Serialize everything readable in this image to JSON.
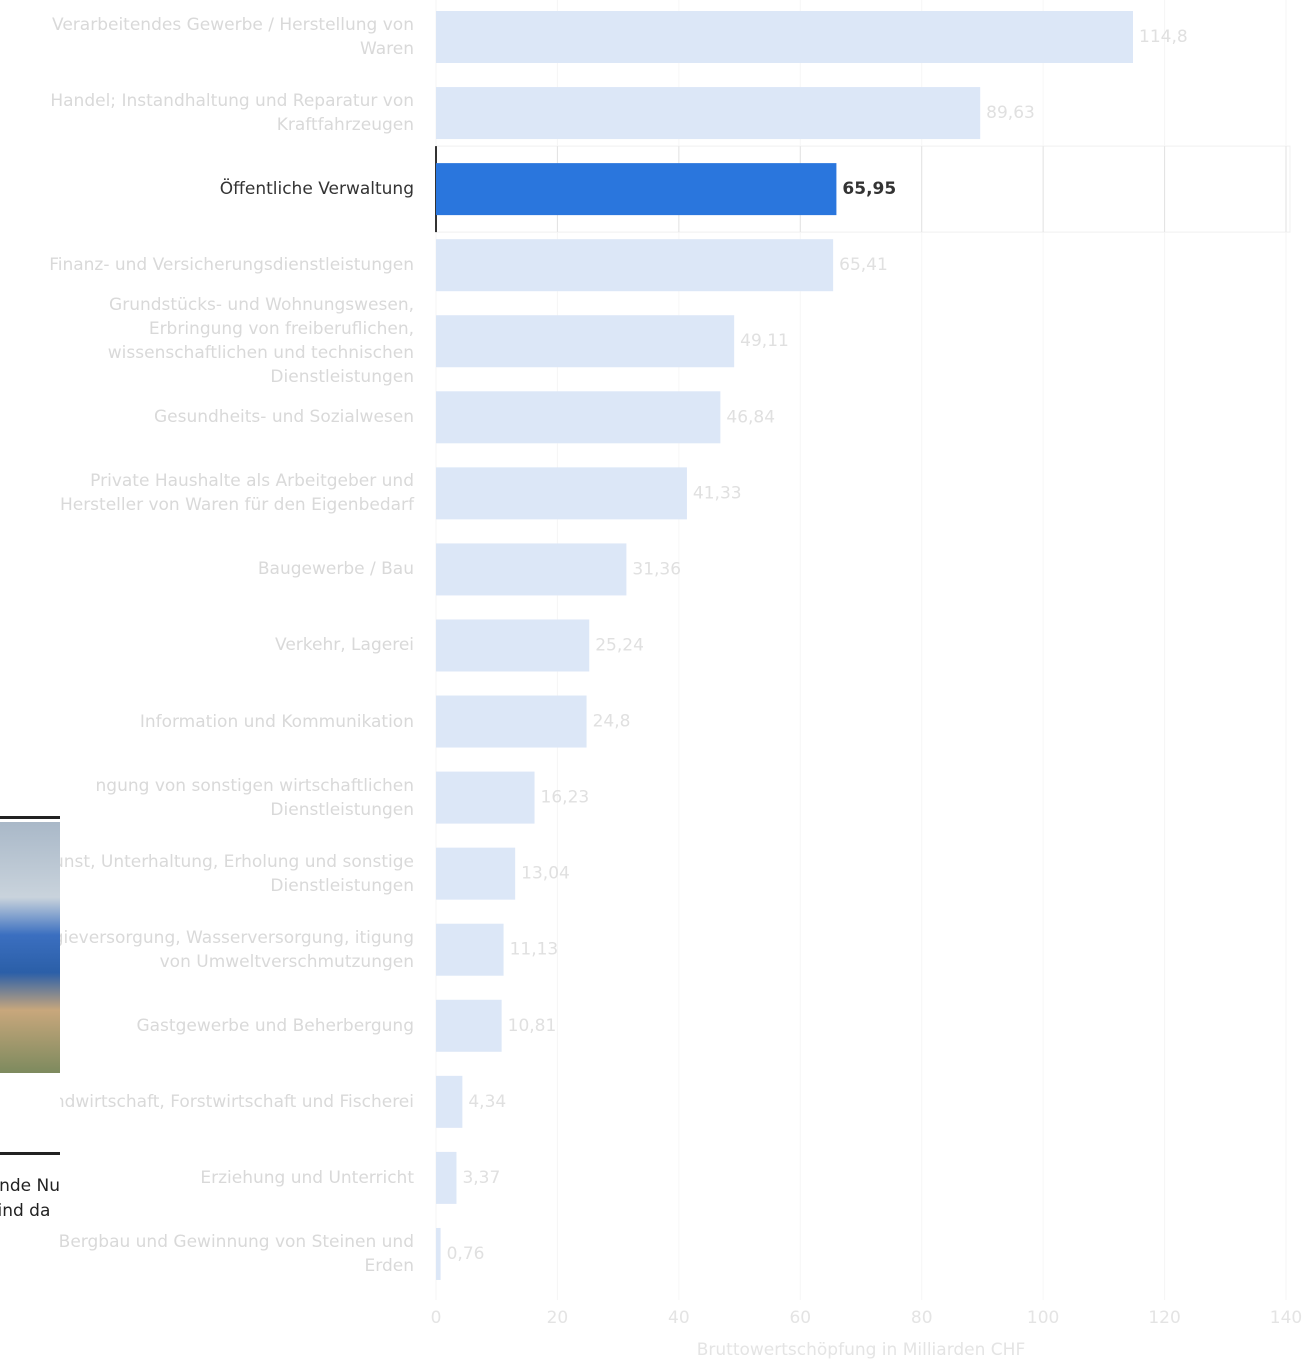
{
  "chart_data": {
    "type": "bar",
    "orientation": "horizontal",
    "categories": [
      "Verarbeitendes Gewerbe / Herstellung von Waren",
      "Handel; Instandhaltung und Reparatur von Kraftfahrzeugen",
      "Öffentliche Verwaltung",
      "Finanz- und Versicherungsdienstleistungen",
      "Grundstücks- und Wohnungswesen, Erbringung von freiberuflichen, wissenschaftlichen und technischen Dienstleistungen",
      "Gesundheits- und Sozialwesen",
      "Private Haushalte als Arbeitgeber und Hersteller von Waren für den Eigenbedarf",
      "Baugewerbe / Bau",
      "Verkehr, Lagerei",
      "Information und Kommunikation",
      "ngung von sonstigen wirtschaftlichen Dienstleistungen",
      "Kunst, Unterhaltung, Erholung und sonstige Dienstleistungen",
      "nergieversorgung, Wasserversorgung, itigung von Umweltverschmutzungen",
      "Gastgewerbe und Beherbergung",
      "Landwirtschaft, Forstwirtschaft und Fischerei",
      "Erziehung und Unterricht",
      "Bergbau und Gewinnung von Steinen und Erden"
    ],
    "values": [
      114.8,
      89.63,
      65.95,
      65.41,
      49.11,
      46.84,
      41.33,
      31.36,
      25.24,
      24.8,
      16.23,
      13.04,
      11.13,
      10.81,
      4.34,
      3.37,
      0.76
    ],
    "value_labels": [
      "114,8",
      "89,63",
      "65,95",
      "65,41",
      "49,11",
      "46,84",
      "41,33",
      "31,36",
      "25,24",
      "24,8",
      "16,23",
      "13,04",
      "11,13",
      "10,81",
      "4,34",
      "3,37",
      "0,76"
    ],
    "color": "#2a76dd",
    "faded_color": "#dce7f7",
    "highlight_index": 2,
    "x_label": "Bruttowertschöpfung in Milliarden CHF",
    "xlim": [
      0,
      140
    ],
    "xticks": [
      0,
      20,
      40,
      60,
      80,
      100,
      120,
      140
    ],
    "grid": true
  },
  "overlay": {
    "lines": [
      "ende Nu",
      "sind da"
    ]
  }
}
